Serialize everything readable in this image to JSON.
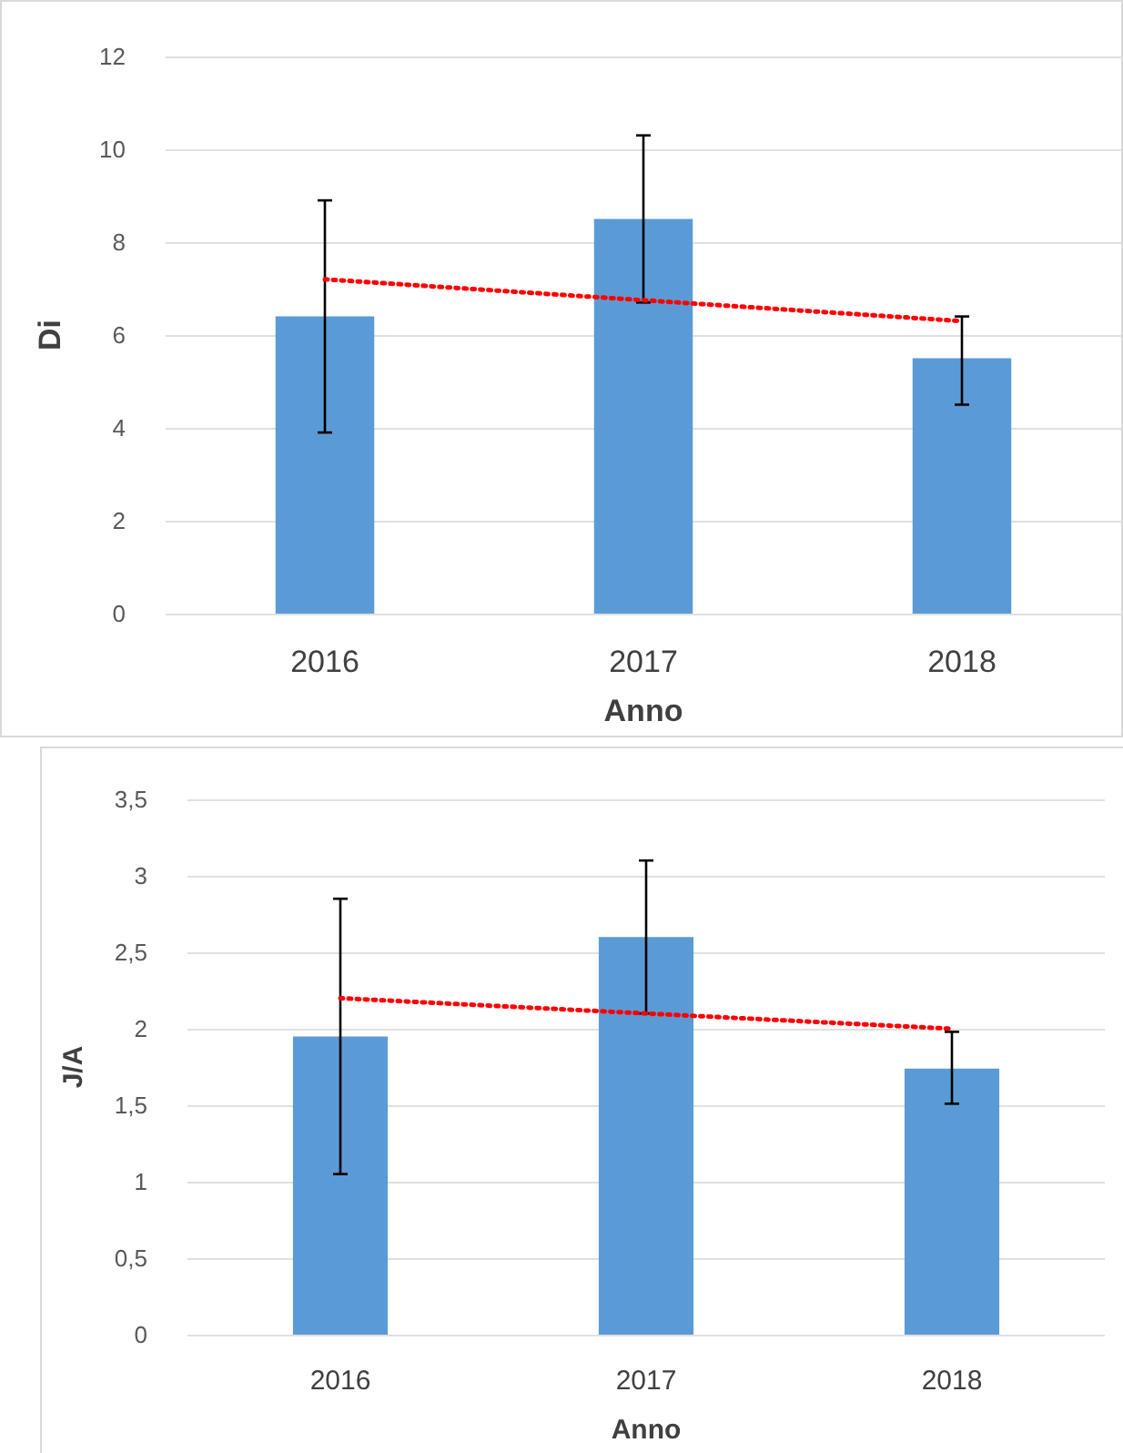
{
  "chart_data": [
    {
      "type": "bar",
      "xlabel": "Anno",
      "ylabel": "Di",
      "categories": [
        "2016",
        "2017",
        "2018"
      ],
      "series": [
        {
          "color": "#5b9bd5",
          "values": [
            6.4,
            8.5,
            5.5
          ],
          "errors": [
            [
              3.9,
              8.9
            ],
            [
              6.7,
              10.3
            ],
            [
              4.5,
              6.4
            ]
          ]
        },
        {
          "type": "line",
          "color": "#ff0000",
          "values": [
            7.2,
            6.75,
            6.3
          ],
          "line_style": "dotted",
          "marker": "none"
        }
      ],
      "ylim": [
        0,
        12
      ],
      "yticks": [
        0,
        2,
        4,
        6,
        8,
        10,
        12
      ],
      "grid": "y"
    },
    {
      "type": "bar",
      "xlabel": "Anno",
      "ylabel": "J/A",
      "categories": [
        "2016",
        "2017",
        "2018"
      ],
      "series": [
        {
          "color": "#5b9bd5",
          "values": [
            1.95,
            2.6,
            1.74
          ],
          "errors": [
            [
              1.05,
              2.85
            ],
            [
              2.1,
              3.1
            ],
            [
              1.51,
              1.98
            ]
          ]
        },
        {
          "type": "line",
          "color": "#ff0000",
          "values": [
            2.2,
            2.1,
            2.0
          ],
          "line_style": "dotted",
          "marker": "none"
        }
      ],
      "ylim": [
        0,
        3.5
      ],
      "yticks": [
        0,
        {
          "value": 0.5,
          "label": "0,5"
        },
        1,
        {
          "value": 1.5,
          "label": "1,5"
        },
        2,
        {
          "value": 2.5,
          "label": "2,5"
        },
        3,
        {
          "value": 3.5,
          "label": "3,5"
        }
      ],
      "grid": "y"
    }
  ]
}
